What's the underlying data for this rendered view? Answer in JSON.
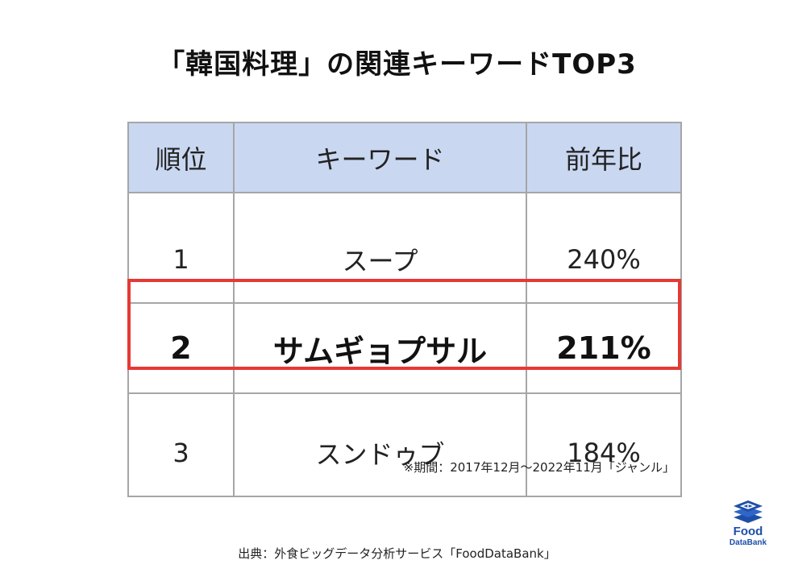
{
  "title": "「韓国料理」の関連キーワードTOP3",
  "chart_data": {
    "type": "table",
    "columns": [
      "順位",
      "キーワード",
      "前年比"
    ],
    "rows": [
      {
        "rank": "1",
        "keyword": "スープ",
        "yoy": "240%"
      },
      {
        "rank": "2",
        "keyword": "サムギョプサル",
        "yoy": "211%"
      },
      {
        "rank": "3",
        "keyword": "スンドゥブ",
        "yoy": "184%"
      }
    ],
    "highlighted_row": 2,
    "highlight_color": "#e53935",
    "header_color": "#c9d7f1"
  },
  "note": "※期間：2017年12月〜2022年11月「ジャンル」",
  "source": "出典：外食ビッグデータ分析サービス「FoodDataBank」",
  "logo": {
    "icon": "stacked-layers-icon",
    "line1": "Food",
    "line2": "DataBank",
    "color": "#1e4fa8"
  }
}
